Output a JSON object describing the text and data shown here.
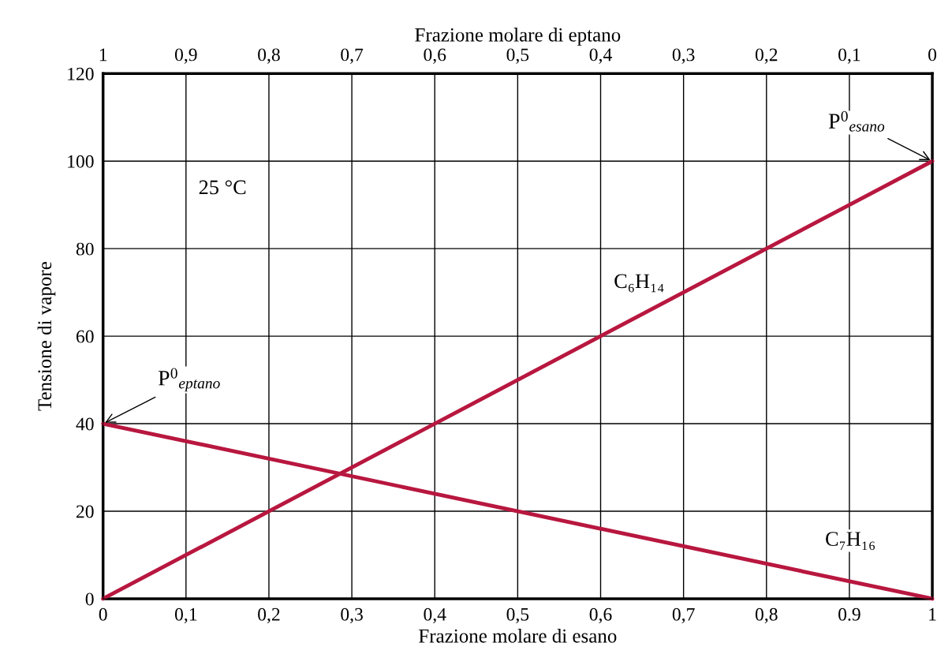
{
  "chart_data": {
    "type": "line",
    "xlabel": "Frazione molare di esano",
    "ylabel": "Tensione di vapore",
    "x2label": "Frazione molare di eptano",
    "xlim": [
      0,
      1
    ],
    "xticks": [
      0,
      {
        "value": 0.1,
        "label": "0,1"
      },
      {
        "value": 0.2,
        "label": "0,2"
      },
      {
        "value": 0.3,
        "label": "0,3"
      },
      {
        "value": 0.4,
        "label": "0,4"
      },
      {
        "value": 0.5,
        "label": "0,5"
      },
      {
        "value": 0.6,
        "label": "0,6"
      },
      {
        "value": 0.7,
        "label": "0,7"
      },
      {
        "value": 0.8,
        "label": "0,8"
      },
      {
        "value": 0.9,
        "label": "0.9"
      },
      1
    ],
    "x2lim": [
      1,
      0
    ],
    "x2ticks": [
      1,
      {
        "value": 0.9,
        "label": "0,9"
      },
      {
        "value": 0.8,
        "label": "0,8"
      },
      {
        "value": 0.7,
        "label": "0,7"
      },
      {
        "value": 0.6,
        "label": "0,6"
      },
      {
        "value": 0.5,
        "label": "0,5"
      },
      {
        "value": 0.4,
        "label": "0,4"
      },
      {
        "value": 0.3,
        "label": "0,3"
      },
      {
        "value": 0.2,
        "label": "0,2"
      },
      {
        "value": 0.1,
        "label": "0,1"
      },
      0
    ],
    "ylim": [
      0,
      120
    ],
    "yticks": [
      0,
      20,
      40,
      60,
      80,
      100,
      120
    ],
    "grid": true,
    "x": [
      0,
      1
    ],
    "series": [
      {
        "name": "C₆H₁₄",
        "color": "#b8173f",
        "values": [
          0,
          100
        ]
      },
      {
        "name": "C₇H₁₆",
        "color": "#b8173f",
        "values": [
          40,
          0
        ]
      }
    ],
    "annotations": [
      "25 °C",
      {
        "text": "P$^{0}$$_{esano}$",
        "x": 1,
        "y": 100
      },
      {
        "text": "P$^{0}$$_{eptano}$",
        "x": 0,
        "y": 40
      }
    ]
  }
}
